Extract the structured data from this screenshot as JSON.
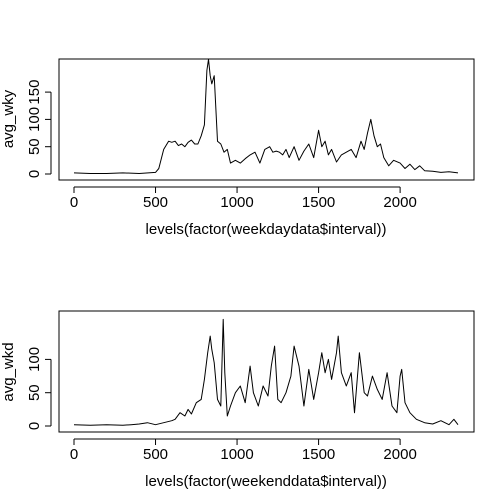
{
  "chart_data": [
    {
      "type": "line",
      "title": "",
      "xlabel": "levels(factor(weekdaydata$interval))",
      "ylabel": "avg_wky",
      "xlim": [
        0,
        2355
      ],
      "ylim": [
        0,
        230
      ],
      "xticks": [
        "0",
        "500",
        "1000",
        "1500",
        "2000"
      ],
      "yticks": [
        "0",
        "50",
        "100",
        "150"
      ],
      "x": [
        0,
        100,
        200,
        300,
        400,
        500,
        520,
        550,
        580,
        600,
        620,
        640,
        660,
        680,
        700,
        720,
        740,
        760,
        780,
        800,
        815,
        825,
        835,
        845,
        860,
        880,
        900,
        920,
        940,
        960,
        990,
        1020,
        1050,
        1080,
        1110,
        1140,
        1170,
        1200,
        1220,
        1240,
        1260,
        1280,
        1300,
        1320,
        1350,
        1380,
        1410,
        1440,
        1470,
        1500,
        1520,
        1540,
        1560,
        1580,
        1610,
        1640,
        1670,
        1700,
        1730,
        1760,
        1780,
        1800,
        1820,
        1840,
        1860,
        1880,
        1900,
        1930,
        1960,
        2000,
        2030,
        2060,
        2090,
        2120,
        2150,
        2200,
        2250,
        2300,
        2355
      ],
      "y": [
        2,
        1,
        1,
        2,
        1,
        3,
        10,
        45,
        60,
        58,
        60,
        52,
        55,
        50,
        58,
        62,
        55,
        55,
        70,
        90,
        190,
        210,
        180,
        165,
        180,
        60,
        55,
        40,
        45,
        20,
        25,
        20,
        28,
        35,
        40,
        20,
        45,
        50,
        40,
        42,
        40,
        35,
        45,
        30,
        50,
        25,
        42,
        55,
        30,
        80,
        50,
        60,
        35,
        45,
        22,
        35,
        40,
        45,
        30,
        60,
        45,
        75,
        100,
        70,
        50,
        55,
        30,
        15,
        25,
        20,
        10,
        18,
        8,
        15,
        6,
        5,
        3,
        4,
        2
      ]
    },
    {
      "type": "line",
      "title": "",
      "xlabel": "levels(factor(weekenddata$interval))",
      "ylabel": "avg_wkd",
      "xlim": [
        0,
        2355
      ],
      "ylim": [
        0,
        175
      ],
      "xticks": [
        "0",
        "500",
        "1000",
        "1500",
        "2000"
      ],
      "yticks": [
        "0",
        "50",
        "100"
      ],
      "x": [
        0,
        100,
        200,
        300,
        350,
        400,
        450,
        500,
        550,
        600,
        620,
        650,
        680,
        700,
        720,
        750,
        780,
        800,
        820,
        835,
        845,
        860,
        880,
        900,
        915,
        925,
        940,
        960,
        990,
        1020,
        1050,
        1080,
        1100,
        1130,
        1160,
        1190,
        1210,
        1230,
        1250,
        1270,
        1300,
        1330,
        1350,
        1380,
        1410,
        1440,
        1470,
        1500,
        1520,
        1540,
        1560,
        1580,
        1610,
        1620,
        1640,
        1670,
        1700,
        1720,
        1750,
        1780,
        1800,
        1830,
        1860,
        1890,
        1920,
        1950,
        1980,
        2000,
        2010,
        2030,
        2060,
        2100,
        2150,
        2200,
        2250,
        2300,
        2330,
        2355
      ],
      "y": [
        2,
        1,
        2,
        1,
        2,
        3,
        5,
        2,
        5,
        8,
        10,
        20,
        15,
        25,
        18,
        35,
        40,
        70,
        110,
        135,
        115,
        95,
        40,
        30,
        160,
        80,
        15,
        30,
        50,
        60,
        35,
        90,
        50,
        30,
        60,
        45,
        90,
        120,
        40,
        35,
        50,
        75,
        120,
        90,
        30,
        85,
        40,
        80,
        110,
        80,
        100,
        70,
        110,
        135,
        80,
        60,
        80,
        20,
        110,
        50,
        45,
        75,
        55,
        40,
        80,
        30,
        20,
        75,
        85,
        35,
        20,
        10,
        5,
        3,
        8,
        2,
        10,
        2
      ]
    }
  ]
}
